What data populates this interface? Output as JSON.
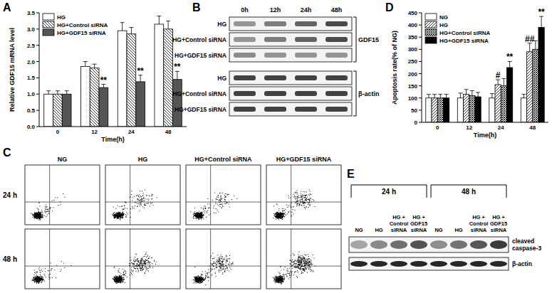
{
  "chart_data": [
    {
      "type": "bar",
      "panel": "A",
      "ylabel": "Relative GDF15 mRNA level",
      "xlabel": "Time(h)",
      "categories": [
        "0",
        "12",
        "24",
        "48"
      ],
      "ylim": [
        0,
        3.5
      ],
      "yticks": [
        {
          "value": 0,
          "label": "0.0"
        },
        {
          "value": 0.5,
          "label": "0.5"
        },
        {
          "value": 1,
          "label": "1.0"
        },
        {
          "value": 1.5,
          "label": "1.5"
        },
        {
          "value": 2,
          "label": "2.0"
        },
        {
          "value": 2.5,
          "label": "2.5"
        },
        {
          "value": 3,
          "label": "3.0"
        },
        {
          "value": 3.5,
          "label": "3.5"
        }
      ],
      "legend": "upper left",
      "series": [
        {
          "name": "HG",
          "color": "#ffffff",
          "values": [
            1.0,
            1.85,
            2.95,
            3.15
          ],
          "errors": [
            0.1,
            0.15,
            0.25,
            0.25
          ]
        },
        {
          "name": "HG+Control siRNA",
          "color": "#ffffff",
          "values": [
            1.0,
            1.8,
            2.85,
            3.0
          ],
          "errors": [
            0.1,
            0.12,
            0.2,
            0.25
          ]
        },
        {
          "name": "HG+GDF15 siRNA",
          "color": "#555555",
          "values": [
            1.0,
            1.2,
            1.38,
            1.45
          ],
          "errors": [
            0.1,
            0.1,
            0.2,
            0.25
          ],
          "significance": [
            null,
            "**",
            "**",
            "**"
          ]
        }
      ]
    },
    {
      "type": "bar",
      "panel": "D",
      "ylabel": "Apoptosis rate(% of NG)",
      "xlabel": "Time(h)",
      "categories": [
        "0",
        "12",
        "24",
        "48"
      ],
      "ylim": [
        0,
        450
      ],
      "yticks": [
        0,
        50,
        100,
        150,
        200,
        250,
        300,
        350,
        400,
        450
      ],
      "legend": "upper left",
      "series": [
        {
          "name": "NG",
          "color": "#ffffff",
          "values": [
            100,
            100,
            100,
            100
          ],
          "errors": [
            15,
            20,
            18,
            15
          ]
        },
        {
          "name": "HG",
          "color": "#ffffff",
          "values": [
            100,
            115,
            155,
            290
          ],
          "errors": [
            15,
            20,
            20,
            35
          ],
          "significance": [
            null,
            null,
            "#",
            "##"
          ]
        },
        {
          "name": "HG+Control siRNA",
          "color": "#ffffff",
          "values": [
            100,
            110,
            150,
            300
          ],
          "errors": [
            15,
            20,
            30,
            35
          ]
        },
        {
          "name": "HG+GDF15 siRNA",
          "color": "#000000",
          "values": [
            100,
            105,
            225,
            390
          ],
          "errors": [
            15,
            18,
            25,
            45
          ],
          "significance": [
            null,
            null,
            "**",
            "**"
          ]
        }
      ]
    }
  ],
  "blot_b": {
    "panel": "B",
    "columns": [
      "0h",
      "12h",
      "24h",
      "48h"
    ],
    "groups": [
      {
        "name": "GDF15",
        "rows": [
          "HG",
          "HG+Control siRNA",
          "HG+GDF15 siRNA"
        ]
      },
      {
        "name": "β-actin",
        "rows": [
          "HG",
          "HG+Control siRNA",
          "HG+GDF15 siRNA"
        ]
      }
    ]
  },
  "flow_c": {
    "panel": "C",
    "columns": [
      "NG",
      "HG",
      "HG+Control siRNA",
      "HG+GDF15 siRNA"
    ],
    "rows": [
      "24 h",
      "48 h"
    ]
  },
  "blot_e": {
    "panel": "E",
    "groups": [
      "24 h",
      "48 h"
    ],
    "lanes": [
      [
        "NG"
      ],
      [
        "HG"
      ],
      [
        "HG +",
        "Control",
        "siRNA"
      ],
      [
        "HG +",
        "GDF15",
        "siRNA"
      ]
    ],
    "rows": [
      [
        "cleaved",
        "caspase-3"
      ],
      [
        "β-actin"
      ]
    ]
  }
}
